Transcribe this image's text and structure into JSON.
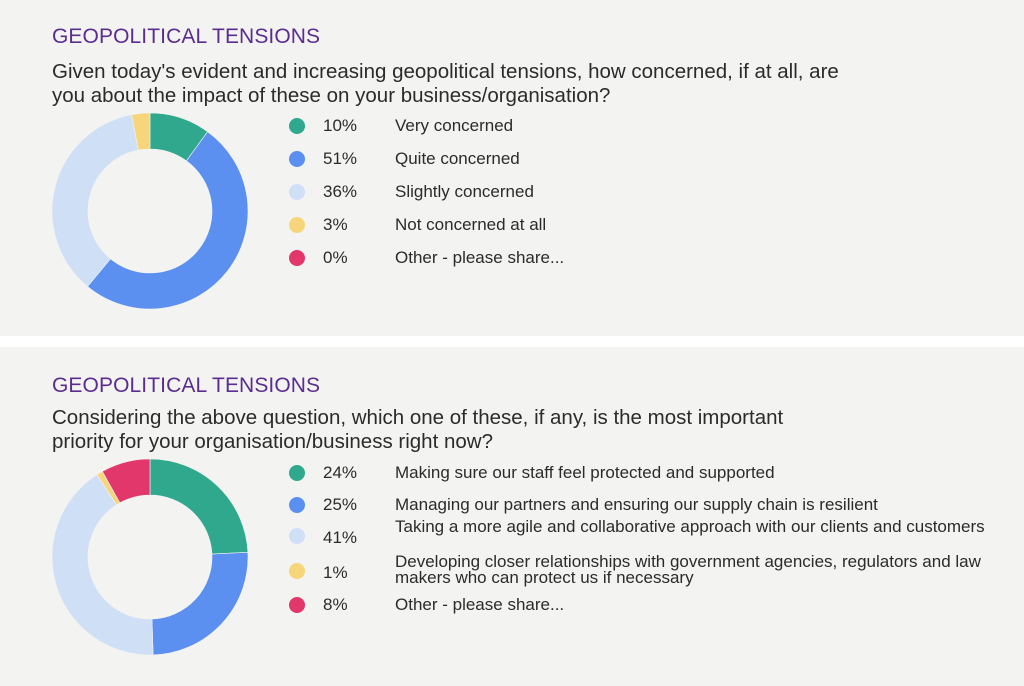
{
  "colors": {
    "title": "#5b2d90",
    "very": "#2fa88d",
    "quite": "#5b8ff0",
    "slightly": "#cfe0f6",
    "not": "#f7d57a",
    "other": "#e2376a"
  },
  "chart_data": [
    {
      "type": "pie",
      "variant": "donut",
      "title": "GEOPOLITICAL TENSIONS",
      "question": "Given today's evident and increasing geopolitical tensions, how concerned, if at all, are you about the impact of these on your business/organisation?",
      "legend_position": "right",
      "slices": [
        {
          "label": "Very concerned",
          "value": 10,
          "value_label": "10%",
          "color": "#2fa88d"
        },
        {
          "label": "Quite concerned",
          "value": 51,
          "value_label": "51%",
          "color": "#5b8ff0"
        },
        {
          "label": "Slightly concerned",
          "value": 36,
          "value_label": "36%",
          "color": "#cfe0f6"
        },
        {
          "label": "Not concerned at all",
          "value": 3,
          "value_label": "3%",
          "color": "#f7d57a"
        },
        {
          "label": "Other - please share...",
          "value": 0,
          "value_label": "0%",
          "color": "#e2376a"
        }
      ]
    },
    {
      "type": "pie",
      "variant": "donut",
      "title": "GEOPOLITICAL TENSIONS",
      "question": "Considering the above question, which one of these, if any, is the most important priority for your organisation/business right now?",
      "legend_position": "right",
      "slices": [
        {
          "label": "Making sure our staff feel protected and supported",
          "value": 24,
          "value_label": "24%",
          "color": "#2fa88d"
        },
        {
          "label": "Managing our partners and ensuring our supply chain is resilient",
          "value": 25,
          "value_label": "25%",
          "color": "#5b8ff0"
        },
        {
          "label": "Taking a more agile and collaborative approach with our clients and customers",
          "value": 41,
          "value_label": "41%",
          "color": "#cfe0f6"
        },
        {
          "label": "Developing closer relationships with government agencies, regulators and law makers who can protect us if necessary",
          "value": 1,
          "value_label": "1%",
          "color": "#f7d57a"
        },
        {
          "label": "Other - please share...",
          "value": 8,
          "value_label": "8%",
          "color": "#e2376a"
        }
      ]
    }
  ]
}
